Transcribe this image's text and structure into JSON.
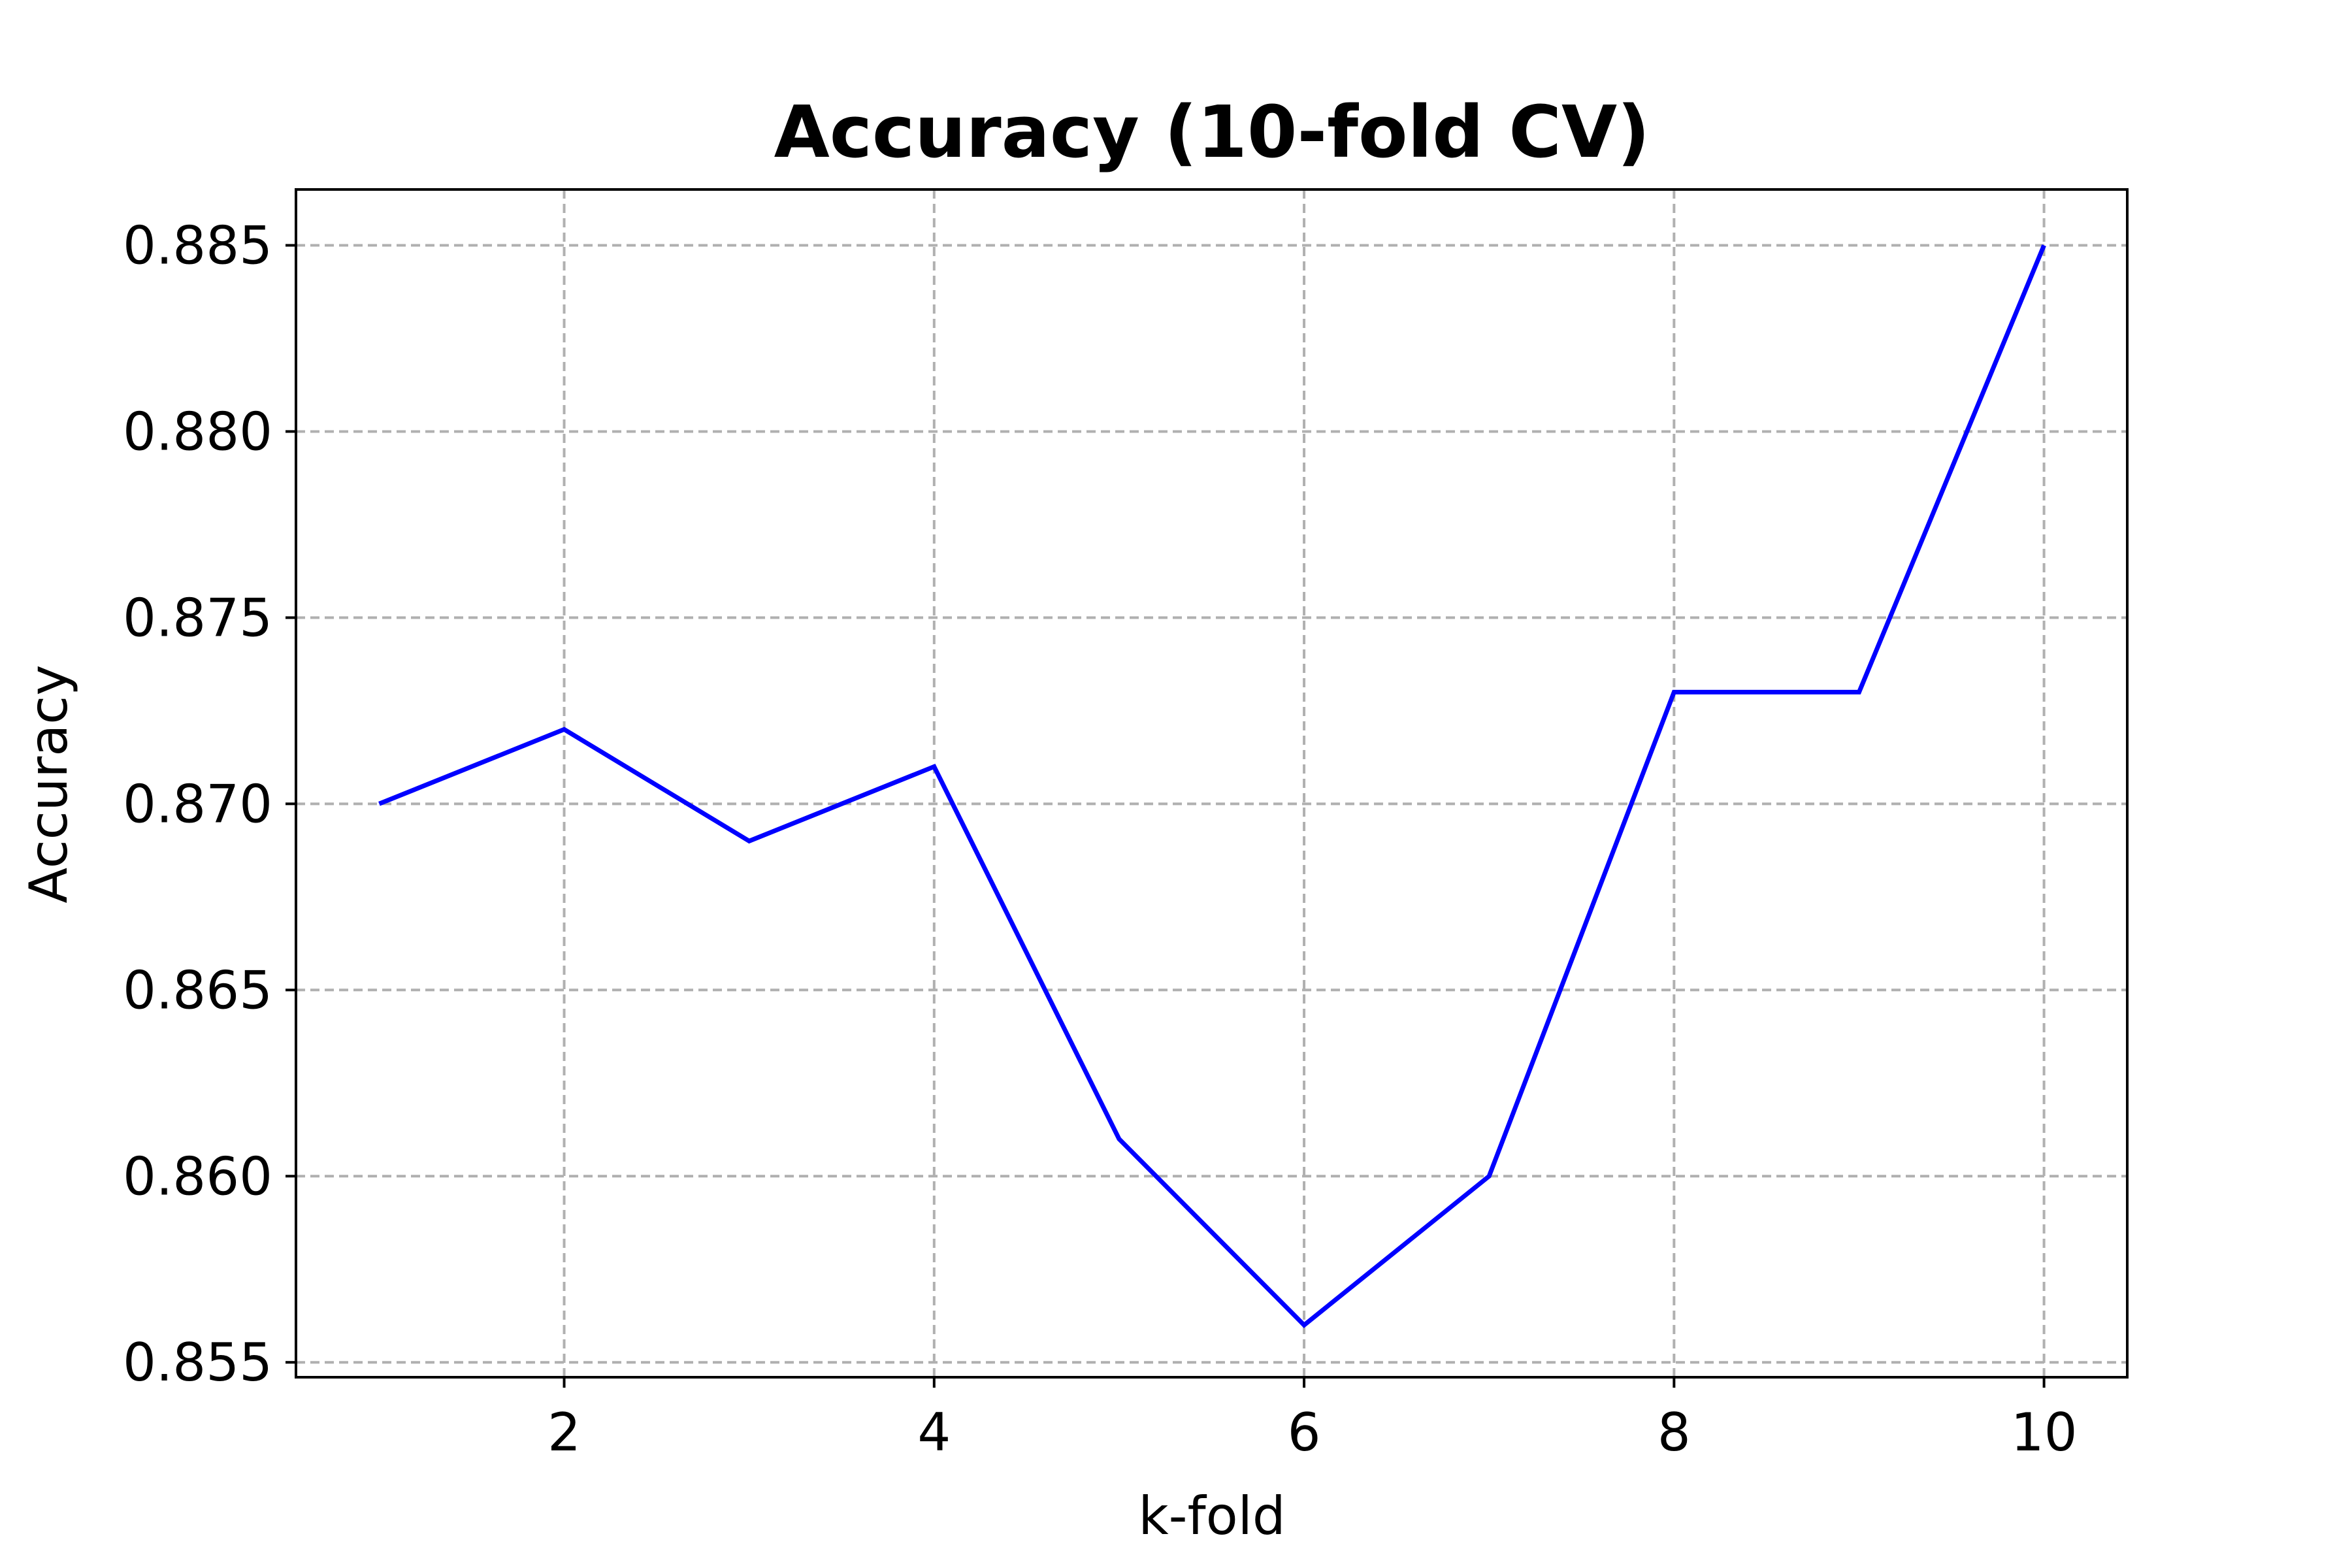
{
  "chart_data": {
    "type": "line",
    "title": "Accuracy (10-fold CV)",
    "xlabel": "k-fold",
    "ylabel": "Accuracy",
    "x": [
      1,
      2,
      3,
      4,
      5,
      6,
      7,
      8,
      9,
      10
    ],
    "series": [
      {
        "values": [
          0.87,
          0.872,
          0.869,
          0.871,
          0.861,
          0.856,
          0.86,
          0.873,
          0.873,
          0.885
        ],
        "color": "#0000ff"
      }
    ],
    "xlim": [
      0.55,
      10.45
    ],
    "ylim": [
      0.8546,
      0.8865
    ],
    "xticks": [
      2,
      4,
      6,
      8,
      10
    ],
    "xtick_labels": [
      "2",
      "4",
      "6",
      "8",
      "10"
    ],
    "yticks": [
      0.855,
      0.86,
      0.865,
      0.87,
      0.875,
      0.88,
      0.885
    ],
    "ytick_labels": [
      "0.855",
      "0.860",
      "0.865",
      "0.870",
      "0.875",
      "0.880",
      "0.885"
    ],
    "grid": true,
    "grid_style": "dashed",
    "grid_color": "#b0b0b0"
  }
}
